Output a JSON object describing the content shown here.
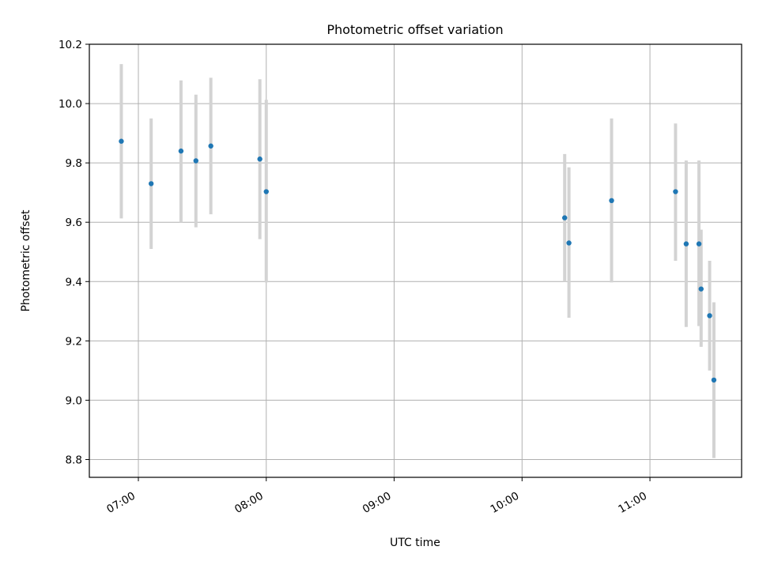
{
  "chart_data": {
    "type": "scatter",
    "title": "Photometric offset variation",
    "xlabel": "UTC time",
    "ylabel": "Photometric offset",
    "x_ticks": [
      "07:00",
      "08:00",
      "09:00",
      "10:00",
      "11:00"
    ],
    "y_ticks": [
      "8.8",
      "9.0",
      "9.2",
      "9.4",
      "9.6",
      "9.8",
      "10.0",
      "10.2"
    ],
    "xlim": [
      "06:37",
      "11:43"
    ],
    "ylim": [
      8.74,
      10.2
    ],
    "grid": true,
    "colors": {
      "point": "#1f77b4",
      "errorbar": "#d3d3d3",
      "grid": "#b0b0b0",
      "axes": "#000000"
    },
    "series": [
      {
        "points": [
          {
            "x": "06:52",
            "y": 9.873,
            "ymin": 9.613,
            "ymax": 10.133
          },
          {
            "x": "07:06",
            "y": 9.73,
            "ymin": 9.51,
            "ymax": 9.95
          },
          {
            "x": "07:20",
            "y": 9.84,
            "ymin": 9.6,
            "ymax": 10.078
          },
          {
            "x": "07:27",
            "y": 9.807,
            "ymin": 9.583,
            "ymax": 10.03
          },
          {
            "x": "07:34",
            "y": 9.857,
            "ymin": 9.627,
            "ymax": 10.087
          },
          {
            "x": "07:57",
            "y": 9.813,
            "ymin": 9.543,
            "ymax": 10.082
          },
          {
            "x": "08:00",
            "y": 9.703,
            "ymin": 9.397,
            "ymax": 10.013
          },
          {
            "x": "10:20",
            "y": 9.615,
            "ymin": 9.4,
            "ymax": 9.83
          },
          {
            "x": "10:22",
            "y": 9.53,
            "ymin": 9.278,
            "ymax": 9.785
          },
          {
            "x": "10:42",
            "y": 9.673,
            "ymin": 9.397,
            "ymax": 9.95
          },
          {
            "x": "11:12",
            "y": 9.703,
            "ymin": 9.47,
            "ymax": 9.933
          },
          {
            "x": "11:17",
            "y": 9.527,
            "ymin": 9.247,
            "ymax": 9.808
          },
          {
            "x": "11:23",
            "y": 9.527,
            "ymin": 9.25,
            "ymax": 9.808
          },
          {
            "x": "11:24",
            "y": 9.375,
            "ymin": 9.18,
            "ymax": 9.575
          },
          {
            "x": "11:28",
            "y": 9.285,
            "ymin": 9.1,
            "ymax": 9.47
          },
          {
            "x": "11:30",
            "y": 9.068,
            "ymin": 8.805,
            "ymax": 9.33
          }
        ]
      }
    ]
  }
}
